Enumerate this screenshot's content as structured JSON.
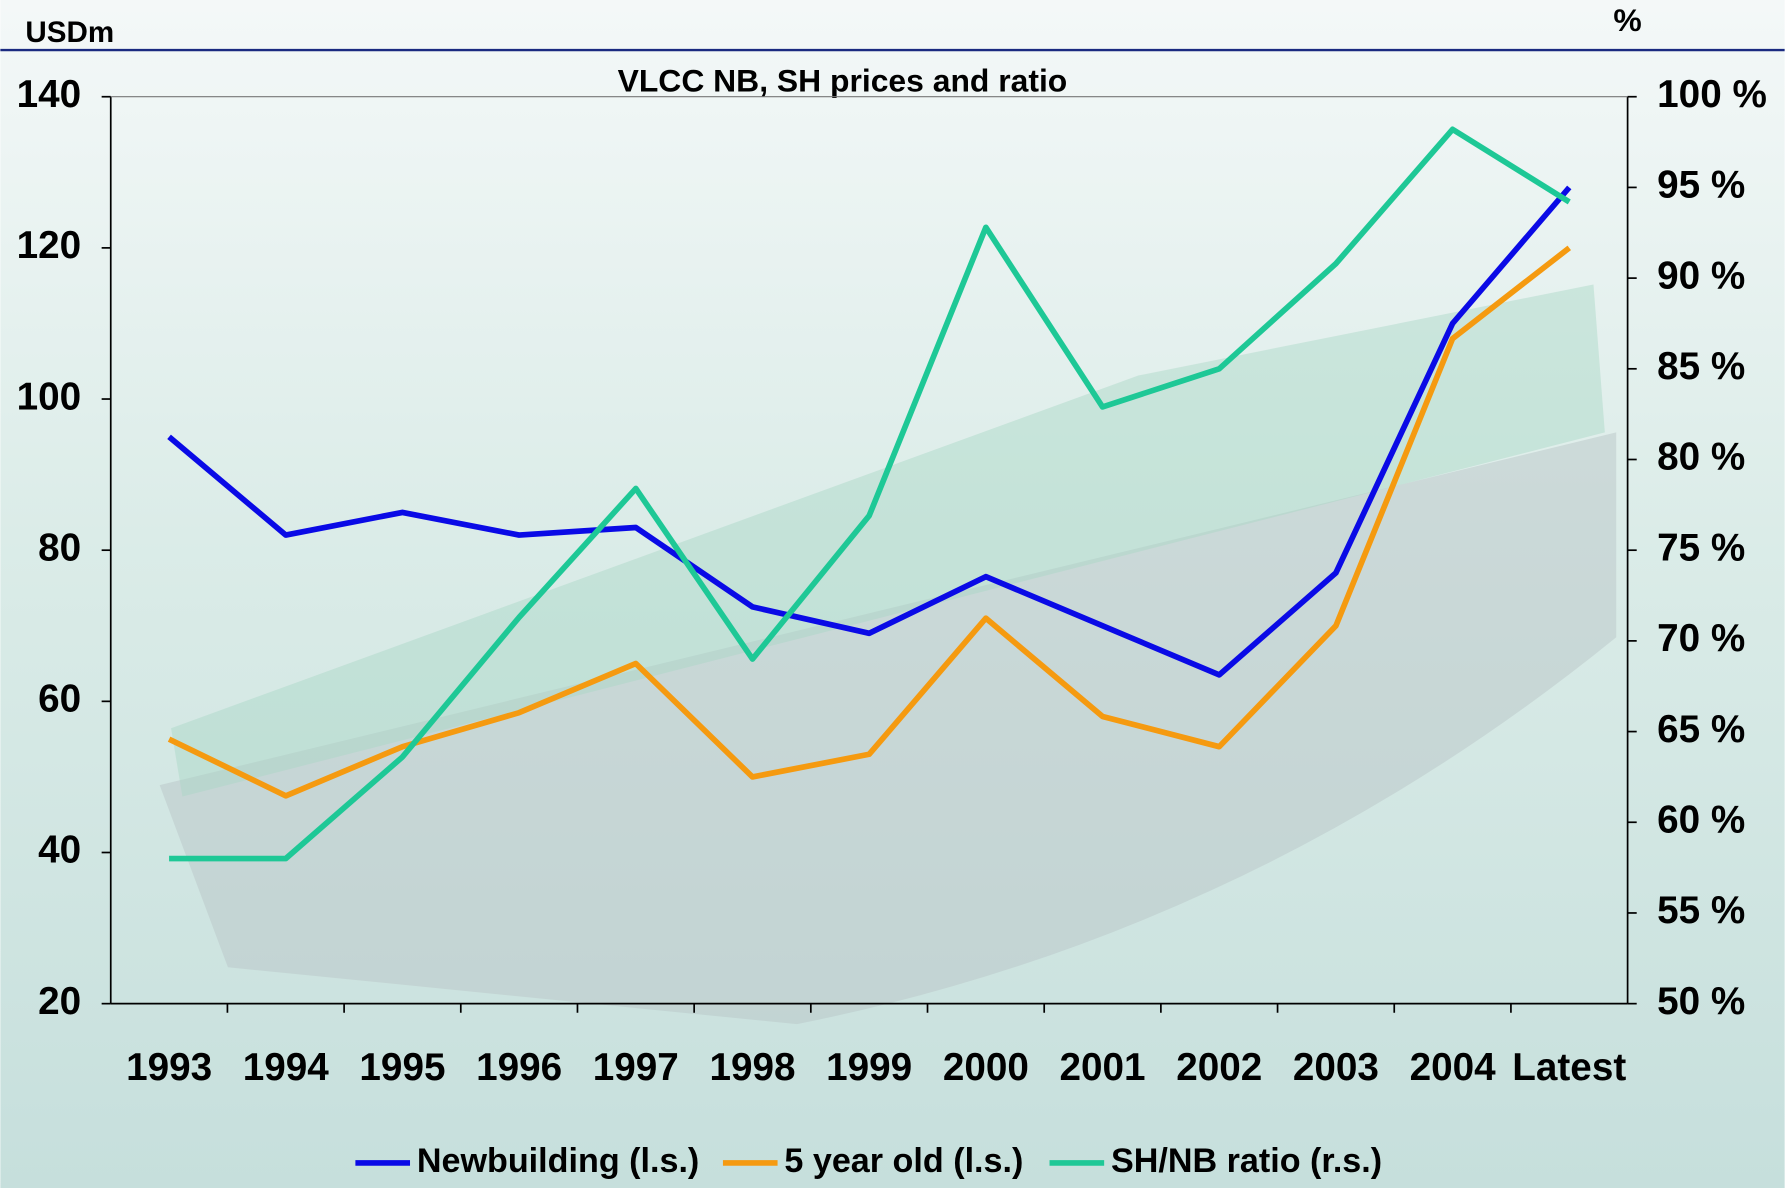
{
  "chart_data": {
    "type": "line",
    "title": "VLCC NB, SH prices and ratio",
    "y_label": "USDm",
    "y2_label": "%",
    "categories": [
      "1993",
      "1994",
      "1995",
      "1996",
      "1997",
      "1998",
      "1999",
      "2000",
      "2001",
      "2002",
      "2003",
      "2004",
      "Latest"
    ],
    "series": [
      {
        "name": "Newbuilding (l.s.)",
        "color": "#0a0ae6",
        "values": [
          95,
          82,
          85,
          82,
          83,
          72.5,
          69,
          76.5,
          70,
          63.5,
          77,
          110,
          128
        ]
      },
      {
        "name": "5 year old (l.s.)",
        "color": "#f59a10",
        "values": [
          55,
          47.5,
          54,
          58.5,
          65,
          50,
          53,
          71,
          58,
          54,
          70,
          108,
          120
        ]
      },
      {
        "name": "SH/NB ratio (r.s.)",
        "color": "#1ec896",
        "axis": "y2",
        "values": [
          58,
          58,
          63.6,
          71.3,
          78.4,
          69,
          76.9,
          92.8,
          82.9,
          85,
          90.8,
          98.2,
          94.2
        ]
      }
    ],
    "ylim": [
      20,
      140
    ],
    "yticks": [
      20,
      40,
      60,
      80,
      100,
      120,
      140
    ],
    "y2lim": [
      50,
      100
    ],
    "y2ticks": [
      {
        "value": 50,
        "label": "50 %"
      },
      {
        "value": 55,
        "label": "55 %"
      },
      {
        "value": 60,
        "label": "60 %"
      },
      {
        "value": 65,
        "label": "65 %"
      },
      {
        "value": 70,
        "label": "70 %"
      },
      {
        "value": 75,
        "label": "75 %"
      },
      {
        "value": 80,
        "label": "80 %"
      },
      {
        "value": 85,
        "label": "85 %"
      },
      {
        "value": 90,
        "label": "90 %"
      },
      {
        "value": 95,
        "label": "95 %"
      },
      {
        "value": 100,
        "label": "100 %"
      }
    ],
    "legend": "bottom"
  }
}
